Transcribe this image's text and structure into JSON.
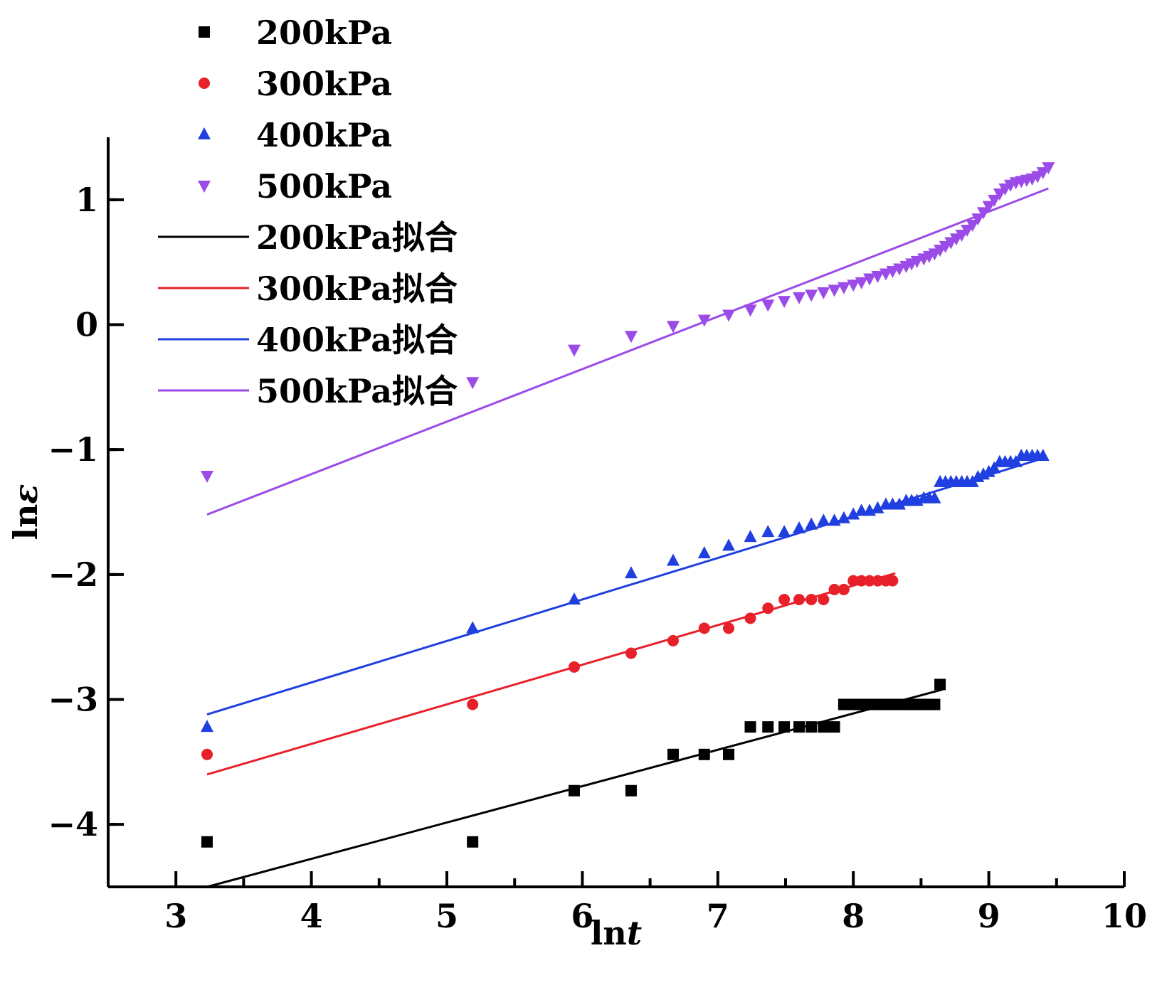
{
  "chart_data": {
    "type": "scatter",
    "title": "",
    "xlabel": {
      "main": "ln",
      "italic": "t"
    },
    "ylabel": {
      "main": "ln",
      "italic": "ε"
    },
    "xlim": [
      2.5,
      10
    ],
    "ylim": [
      -4.5,
      1.5
    ],
    "x_ticks": [
      3,
      4,
      5,
      6,
      7,
      8,
      9,
      10
    ],
    "y_ticks": [
      1,
      0,
      -1,
      -2,
      -3,
      -4
    ],
    "x_tick_labels": [
      "3",
      "4",
      "5",
      "6",
      "7",
      "8",
      "9",
      "10"
    ],
    "y_tick_labels": [
      "1",
      "0",
      "−1",
      "−2",
      "−3",
      "−4"
    ],
    "grid": false,
    "legend_position": "top-left",
    "series": [
      {
        "name": "200kPa",
        "marker": "square",
        "color": "#000000",
        "points": [
          [
            3.23,
            -4.14
          ],
          [
            5.19,
            -4.14
          ],
          [
            5.94,
            -3.73
          ],
          [
            6.36,
            -3.73
          ],
          [
            6.67,
            -3.44
          ],
          [
            6.9,
            -3.44
          ],
          [
            7.08,
            -3.44
          ],
          [
            7.24,
            -3.22
          ],
          [
            7.37,
            -3.22
          ],
          [
            7.49,
            -3.22
          ],
          [
            7.6,
            -3.22
          ],
          [
            7.69,
            -3.22
          ],
          [
            7.78,
            -3.22
          ],
          [
            7.86,
            -3.22
          ],
          [
            7.93,
            -3.04
          ],
          [
            8.0,
            -3.04
          ],
          [
            8.06,
            -3.04
          ],
          [
            8.12,
            -3.04
          ],
          [
            8.18,
            -3.04
          ],
          [
            8.24,
            -3.04
          ],
          [
            8.29,
            -3.04
          ],
          [
            8.34,
            -3.04
          ],
          [
            8.39,
            -3.04
          ],
          [
            8.43,
            -3.04
          ],
          [
            8.47,
            -3.04
          ],
          [
            8.52,
            -3.04
          ],
          [
            8.56,
            -3.04
          ],
          [
            8.6,
            -3.04
          ],
          [
            8.64,
            -2.88
          ]
        ]
      },
      {
        "name": "300kPa",
        "marker": "circle",
        "color": "#e8202a",
        "points": [
          [
            3.23,
            -3.44
          ],
          [
            5.19,
            -3.04
          ],
          [
            5.94,
            -2.74
          ],
          [
            6.36,
            -2.63
          ],
          [
            6.67,
            -2.53
          ],
          [
            6.9,
            -2.43
          ],
          [
            7.08,
            -2.43
          ],
          [
            7.24,
            -2.35
          ],
          [
            7.37,
            -2.27
          ],
          [
            7.49,
            -2.2
          ],
          [
            7.6,
            -2.2
          ],
          [
            7.69,
            -2.2
          ],
          [
            7.78,
            -2.2
          ],
          [
            7.86,
            -2.12
          ],
          [
            7.93,
            -2.12
          ],
          [
            8.0,
            -2.05
          ],
          [
            8.06,
            -2.05
          ],
          [
            8.12,
            -2.05
          ],
          [
            8.18,
            -2.05
          ],
          [
            8.24,
            -2.05
          ],
          [
            8.29,
            -2.05
          ]
        ]
      },
      {
        "name": "400kPa",
        "marker": "triangle-up",
        "color": "#1f3fe0",
        "points": [
          [
            3.23,
            -3.22
          ],
          [
            5.19,
            -2.43
          ],
          [
            5.94,
            -2.2
          ],
          [
            6.36,
            -1.99
          ],
          [
            6.67,
            -1.89
          ],
          [
            6.9,
            -1.83
          ],
          [
            7.08,
            -1.77
          ],
          [
            7.24,
            -1.7
          ],
          [
            7.37,
            -1.66
          ],
          [
            7.49,
            -1.66
          ],
          [
            7.6,
            -1.63
          ],
          [
            7.69,
            -1.6
          ],
          [
            7.78,
            -1.57
          ],
          [
            7.86,
            -1.57
          ],
          [
            7.93,
            -1.55
          ],
          [
            8.0,
            -1.52
          ],
          [
            8.06,
            -1.49
          ],
          [
            8.12,
            -1.49
          ],
          [
            8.18,
            -1.47
          ],
          [
            8.24,
            -1.44
          ],
          [
            8.29,
            -1.44
          ],
          [
            8.34,
            -1.44
          ],
          [
            8.39,
            -1.41
          ],
          [
            8.43,
            -1.41
          ],
          [
            8.47,
            -1.41
          ],
          [
            8.52,
            -1.39
          ],
          [
            8.56,
            -1.39
          ],
          [
            8.6,
            -1.39
          ],
          [
            8.64,
            -1.26
          ],
          [
            8.68,
            -1.26
          ],
          [
            8.72,
            -1.26
          ],
          [
            8.76,
            -1.26
          ],
          [
            8.8,
            -1.26
          ],
          [
            8.84,
            -1.26
          ],
          [
            8.88,
            -1.26
          ],
          [
            8.92,
            -1.22
          ],
          [
            8.96,
            -1.2
          ],
          [
            9.0,
            -1.18
          ],
          [
            9.04,
            -1.15
          ],
          [
            9.08,
            -1.1
          ],
          [
            9.12,
            -1.1
          ],
          [
            9.16,
            -1.1
          ],
          [
            9.2,
            -1.1
          ],
          [
            9.24,
            -1.05
          ],
          [
            9.28,
            -1.05
          ],
          [
            9.32,
            -1.05
          ],
          [
            9.36,
            -1.05
          ],
          [
            9.4,
            -1.05
          ]
        ]
      },
      {
        "name": "500kPa",
        "marker": "triangle-down",
        "color": "#9b4be8",
        "points": [
          [
            3.23,
            -1.21
          ],
          [
            5.19,
            -0.46
          ],
          [
            5.94,
            -0.2
          ],
          [
            6.36,
            -0.09
          ],
          [
            6.67,
            -0.01
          ],
          [
            6.9,
            0.04
          ],
          [
            7.08,
            0.08
          ],
          [
            7.24,
            0.12
          ],
          [
            7.37,
            0.16
          ],
          [
            7.49,
            0.19
          ],
          [
            7.6,
            0.22
          ],
          [
            7.69,
            0.24
          ],
          [
            7.78,
            0.26
          ],
          [
            7.86,
            0.28
          ],
          [
            7.93,
            0.3
          ],
          [
            8.0,
            0.32
          ],
          [
            8.06,
            0.34
          ],
          [
            8.12,
            0.37
          ],
          [
            8.18,
            0.39
          ],
          [
            8.24,
            0.41
          ],
          [
            8.29,
            0.43
          ],
          [
            8.34,
            0.45
          ],
          [
            8.39,
            0.47
          ],
          [
            8.43,
            0.49
          ],
          [
            8.47,
            0.51
          ],
          [
            8.52,
            0.53
          ],
          [
            8.56,
            0.55
          ],
          [
            8.6,
            0.57
          ],
          [
            8.64,
            0.6
          ],
          [
            8.68,
            0.63
          ],
          [
            8.72,
            0.66
          ],
          [
            8.76,
            0.69
          ],
          [
            8.8,
            0.72
          ],
          [
            8.84,
            0.76
          ],
          [
            8.88,
            0.8
          ],
          [
            8.92,
            0.85
          ],
          [
            8.96,
            0.9
          ],
          [
            9.0,
            0.95
          ],
          [
            9.04,
            1.0
          ],
          [
            9.08,
            1.05
          ],
          [
            9.12,
            1.09
          ],
          [
            9.16,
            1.12
          ],
          [
            9.2,
            1.14
          ],
          [
            9.24,
            1.15
          ],
          [
            9.28,
            1.16
          ],
          [
            9.32,
            1.17
          ],
          [
            9.36,
            1.19
          ],
          [
            9.4,
            1.22
          ],
          [
            9.44,
            1.26
          ]
        ]
      }
    ],
    "fits": [
      {
        "name": "200kPa拟合",
        "color": "#000000",
        "x": [
          3.23,
          8.66
        ],
        "y": [
          -4.5,
          -2.92
        ]
      },
      {
        "name": "300kPa拟合",
        "color": "#e8202a",
        "x": [
          3.23,
          8.31
        ],
        "y": [
          -3.6,
          -1.99
        ]
      },
      {
        "name": "400kPa拟合",
        "color": "#1f3fe0",
        "x": [
          3.23,
          9.4
        ],
        "y": [
          -3.12,
          -1.07
        ]
      },
      {
        "name": "500kPa拟合",
        "color": "#9b4be8",
        "x": [
          3.23,
          9.44
        ],
        "y": [
          -1.52,
          1.09
        ]
      }
    ]
  }
}
